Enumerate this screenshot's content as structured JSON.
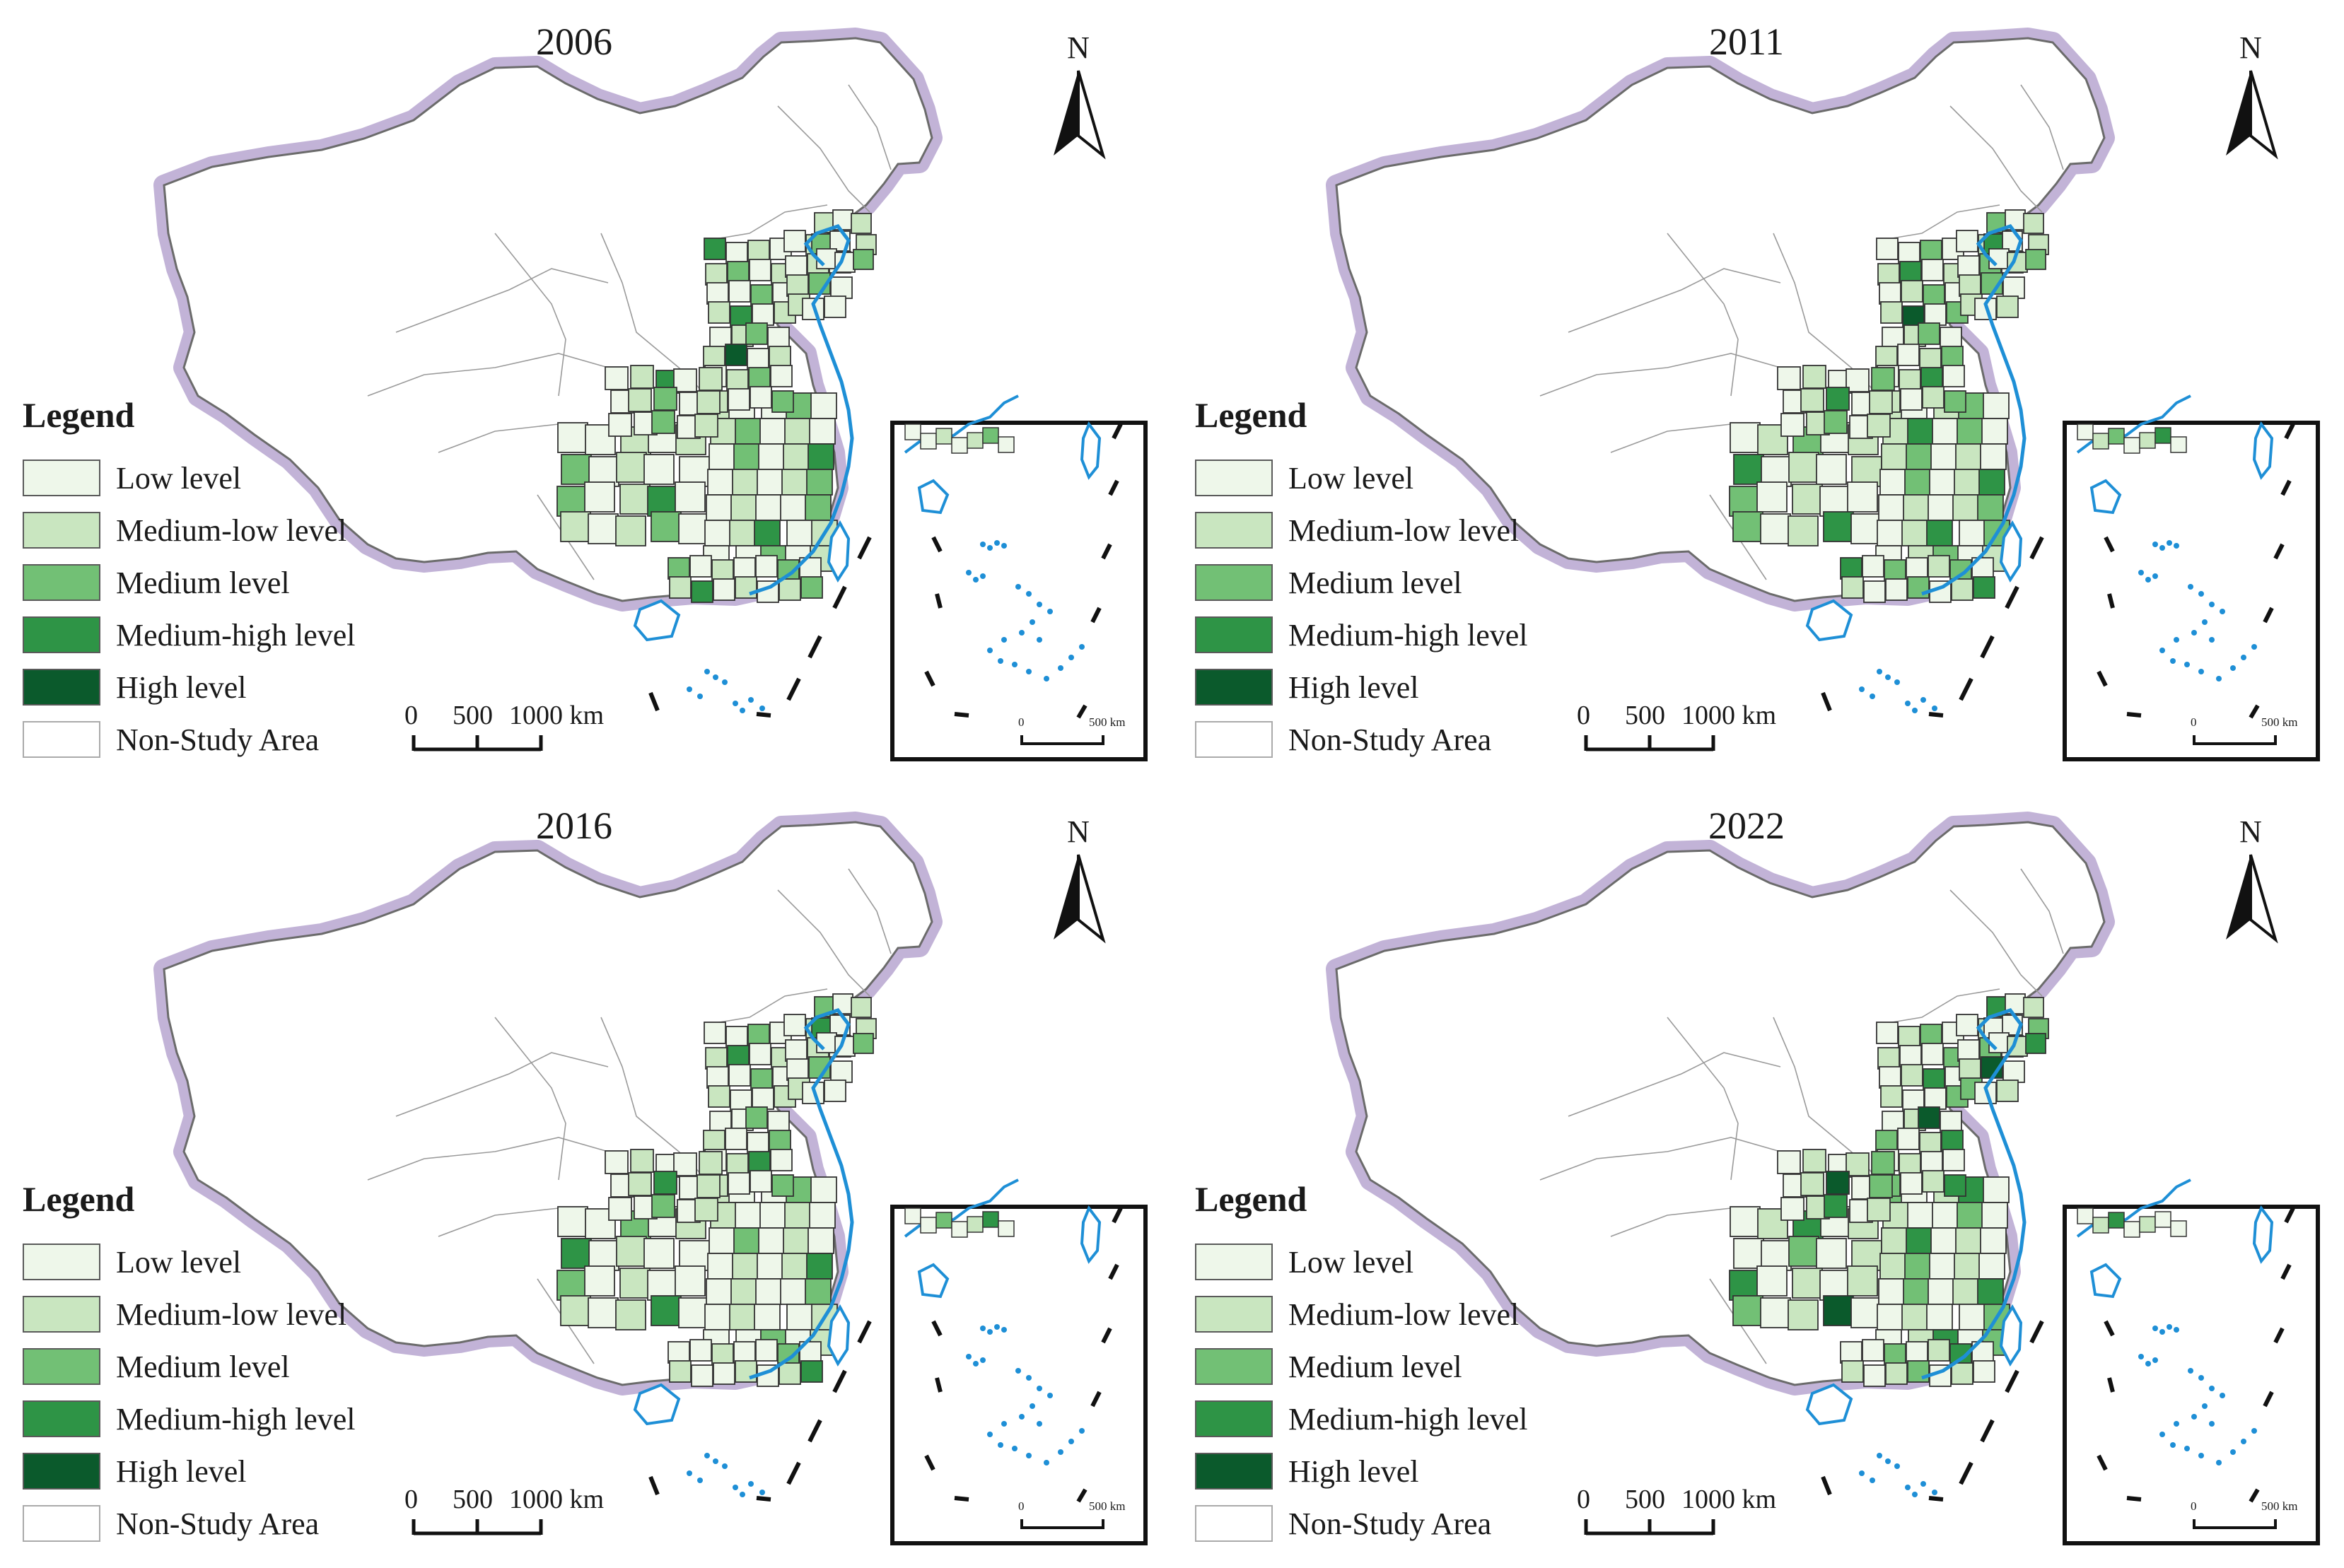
{
  "legend": {
    "title": "Legend",
    "items": [
      {
        "key": "low",
        "label": "Low level",
        "color": "#eef7ea"
      },
      {
        "key": "medium_low",
        "label": "Medium-low level",
        "color": "#c9e6c0"
      },
      {
        "key": "medium",
        "label": "Medium level",
        "color": "#72c075"
      },
      {
        "key": "medium_high",
        "label": "Medium-high level",
        "color": "#2e9446"
      },
      {
        "key": "high",
        "label": "High level",
        "color": "#0b5a2c"
      },
      {
        "key": "non_study",
        "label": "Non-Study Area",
        "color": "#ffffff"
      }
    ]
  },
  "north_arrow": {
    "label": "N"
  },
  "scale_bar": {
    "labels": [
      "0",
      "500",
      "1000 km"
    ]
  },
  "inset": {
    "scale_labels": [
      "0",
      "500 km"
    ]
  },
  "colors": {
    "coast": "#1e8fd6",
    "boundary_halo": "#b7a6d0",
    "region_border": "#333333",
    "land_outline": "#6b6b6b"
  },
  "panels": [
    {
      "year": "2006"
    },
    {
      "year": "2011"
    },
    {
      "year": "2016"
    },
    {
      "year": "2022"
    }
  ]
}
